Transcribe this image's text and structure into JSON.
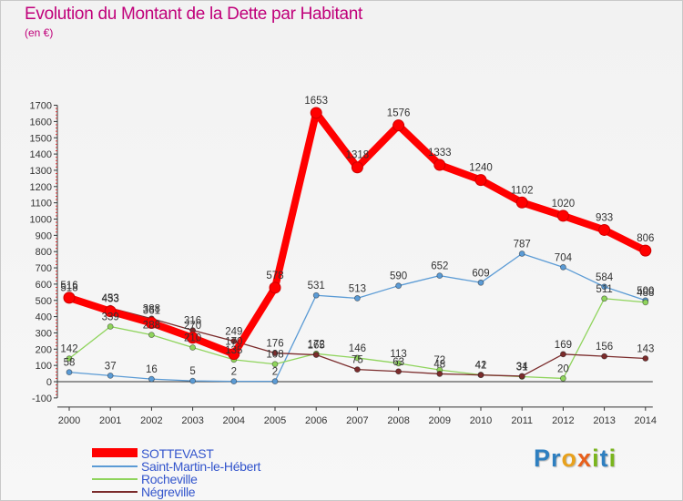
{
  "header": {
    "title": "Evolution du Montant de la Dette par Habitant",
    "subtitle": "(en €)"
  },
  "logo": {
    "text": "Proxiti",
    "letters": [
      {
        "ch": "P",
        "color": "#2e7fc0"
      },
      {
        "ch": "r",
        "color": "#2e7fc0"
      },
      {
        "ch": "o",
        "color": "#e8a11c"
      },
      {
        "ch": "x",
        "color": "#e8601c"
      },
      {
        "ch": "i",
        "color": "#7ab51d"
      },
      {
        "ch": "t",
        "color": "#2e7fc0"
      },
      {
        "ch": "i",
        "color": "#7ab51d"
      }
    ]
  },
  "chart_data": {
    "type": "line",
    "title": "Evolution du Montant de la Dette par Habitant",
    "ylabel": "(en €)",
    "xlabel": "",
    "x": [
      "2000",
      "2001",
      "2002",
      "2003",
      "2004",
      "2005",
      "2006",
      "2007",
      "2008",
      "2009",
      "2010",
      "2011",
      "2012",
      "2013",
      "2014"
    ],
    "ylim": [
      -100,
      1700
    ],
    "yticks": [
      -100,
      0,
      100,
      200,
      300,
      400,
      500,
      600,
      700,
      800,
      900,
      1000,
      1100,
      1200,
      1300,
      1400,
      1500,
      1600,
      1700
    ],
    "grid": false,
    "legend_position": "bottom-left",
    "series": [
      {
        "name": "Saint-Martin-le-Hébert",
        "color": "#5b9bd5",
        "values": [
          58,
          37,
          16,
          5,
          2,
          2,
          531,
          513,
          590,
          652,
          609,
          787,
          704,
          584,
          500
        ]
      },
      {
        "name": "Rocheville",
        "color": "#8fd45c",
        "values": [
          142,
          339,
          288,
          210,
          135,
          108,
          172,
          146,
          113,
          72,
          42,
          31,
          20,
          511,
          488
        ]
      },
      {
        "name": "Négreville",
        "color": "#7b2c2c",
        "values": [
          518,
          453,
          388,
          316,
          249,
          176,
          165,
          75,
          63,
          48,
          41,
          34,
          169,
          156,
          143
        ]
      },
      {
        "name": "SOTTEVAST",
        "color": "#ff0000",
        "values": [
          516,
          433,
          361,
          270,
          170,
          578,
          1653,
          1318,
          1576,
          1333,
          1240,
          1102,
          1020,
          933,
          806
        ]
      }
    ]
  }
}
